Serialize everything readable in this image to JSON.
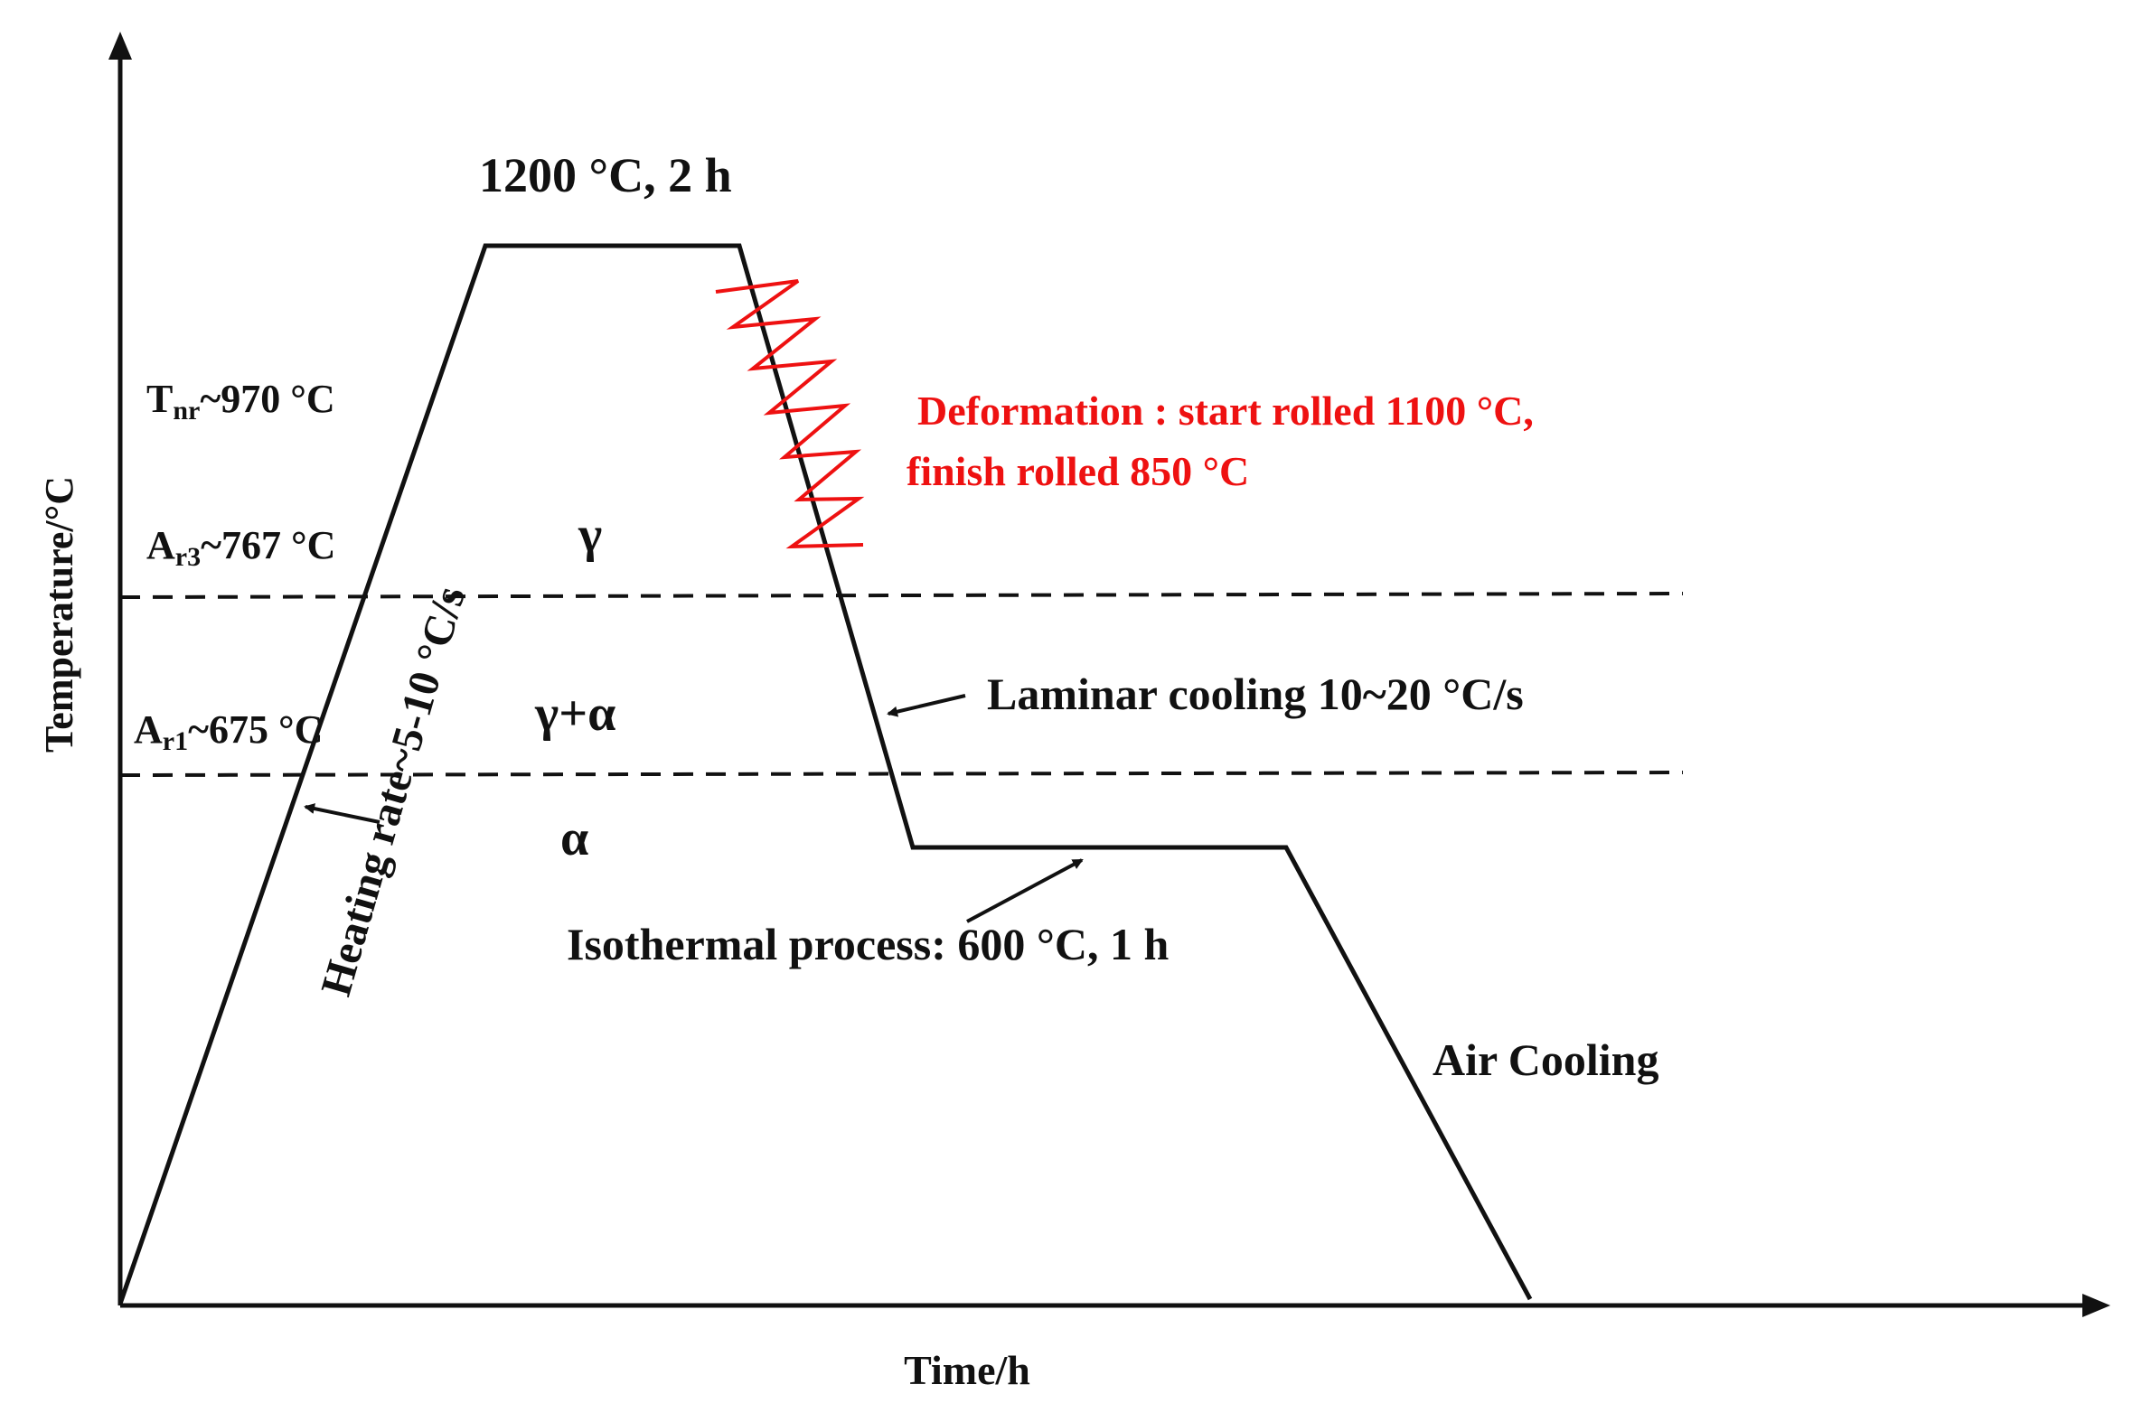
{
  "axes": {
    "y_label": "Temperature/°C",
    "x_label": "Time/h"
  },
  "labels": {
    "hold_top": "1200 °C, 2 h",
    "tnr": {
      "main": "T",
      "sub": "nr",
      "value": "~970 °C"
    },
    "ar3": {
      "main": "A",
      "sub": "r3",
      "value": "~767 °C"
    },
    "ar1": {
      "main": "A",
      "sub": "r1",
      "value": "~675 °C"
    },
    "phase_gamma": "γ",
    "phase_gamma_alpha": "γ+α",
    "phase_alpha": "α",
    "heating_rate": "Heating rate~5-10 °C/s",
    "deformation_line1": "Deformation : start rolled 1100 °C,",
    "deformation_line2": "finish rolled 850 °C",
    "laminar_cooling": "Laminar cooling 10~20 °C/s",
    "isothermal": "Isothermal process: 600 °C, 1 h",
    "air_cooling": "Air Cooling"
  },
  "colors": {
    "line": "#111111",
    "deformation": "#ee1111"
  }
}
